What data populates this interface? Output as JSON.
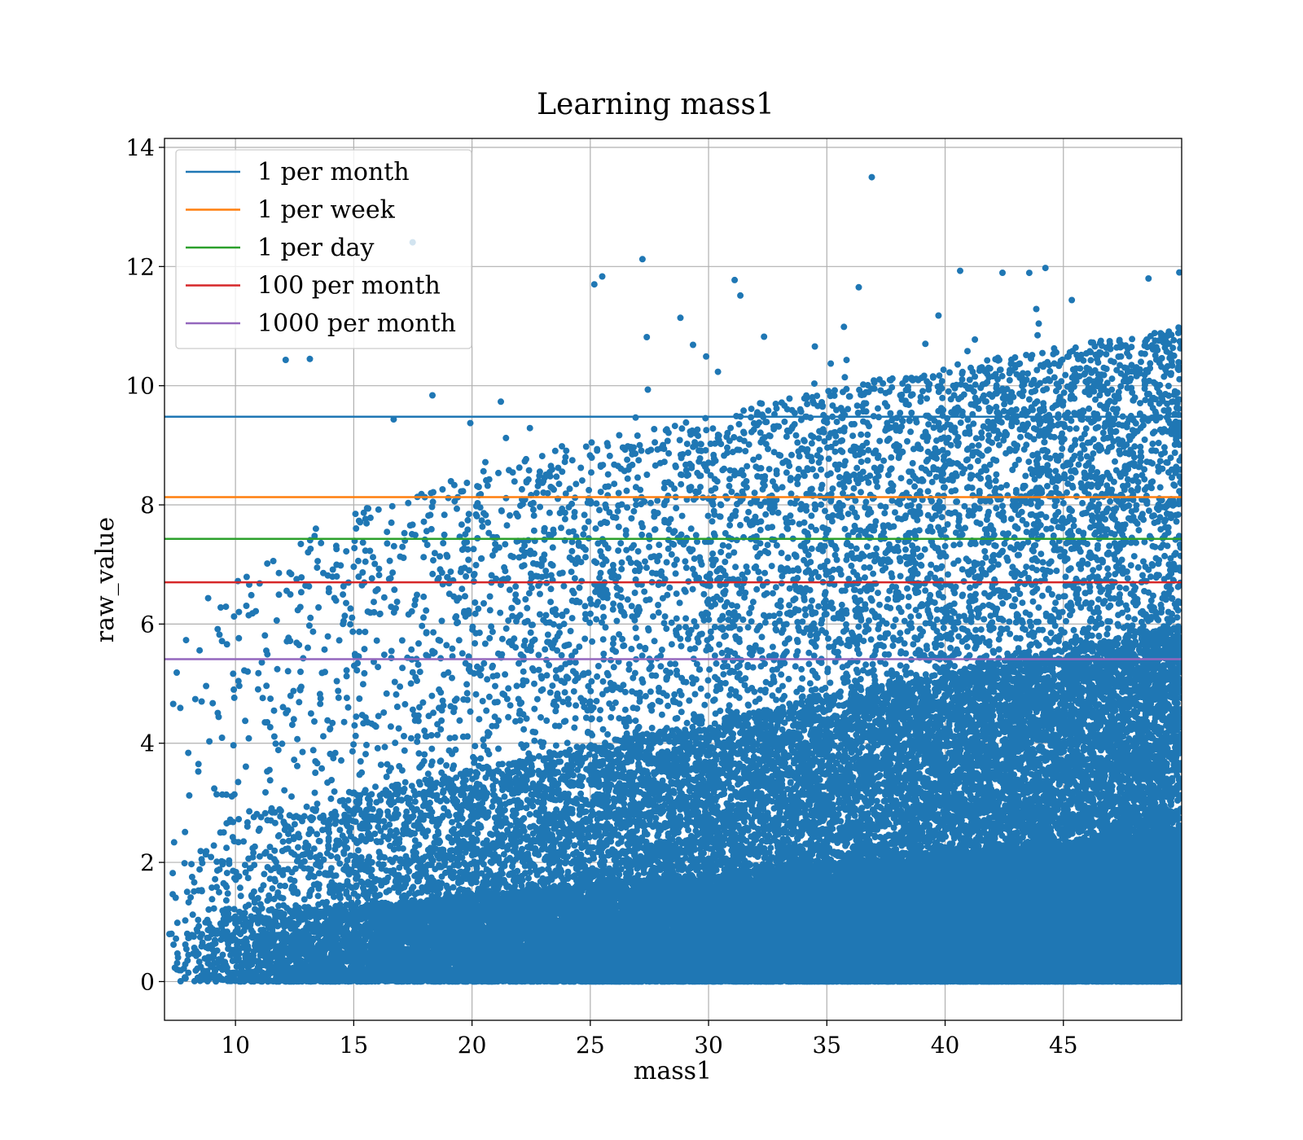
{
  "chart_data": {
    "type": "scatter",
    "title": "Learning mass1",
    "xlabel": "mass1",
    "ylabel": "raw_value",
    "xlim": [
      7.0,
      50.0
    ],
    "ylim": [
      -0.65,
      14.15
    ],
    "xticks": [
      10,
      15,
      20,
      25,
      30,
      35,
      40,
      45
    ],
    "yticks": [
      0,
      2,
      4,
      6,
      8,
      10,
      12,
      14
    ],
    "grid": true,
    "legend_position": "upper-left",
    "scatter_series": {
      "color": "#1f77b4",
      "point_count": 52000,
      "x_range": [
        7.0,
        50.0
      ],
      "y_range": [
        0,
        13.5
      ],
      "notable_points": [
        {
          "x": 36.9,
          "y": 13.5
        },
        {
          "x": 49.9,
          "y": 11.9
        },
        {
          "x": 48.6,
          "y": 11.8
        }
      ]
    },
    "threshold_lines": [
      {
        "name": "1 per month",
        "y": 9.48,
        "color": "#1f77b4"
      },
      {
        "name": "1 per week",
        "y": 8.13,
        "color": "#ff7f0e"
      },
      {
        "name": "1 per day",
        "y": 7.43,
        "color": "#2ca02c"
      },
      {
        "name": "100 per month",
        "y": 6.7,
        "color": "#d62728"
      },
      {
        "name": "1000 per month",
        "y": 5.41,
        "color": "#9467bd"
      }
    ]
  }
}
